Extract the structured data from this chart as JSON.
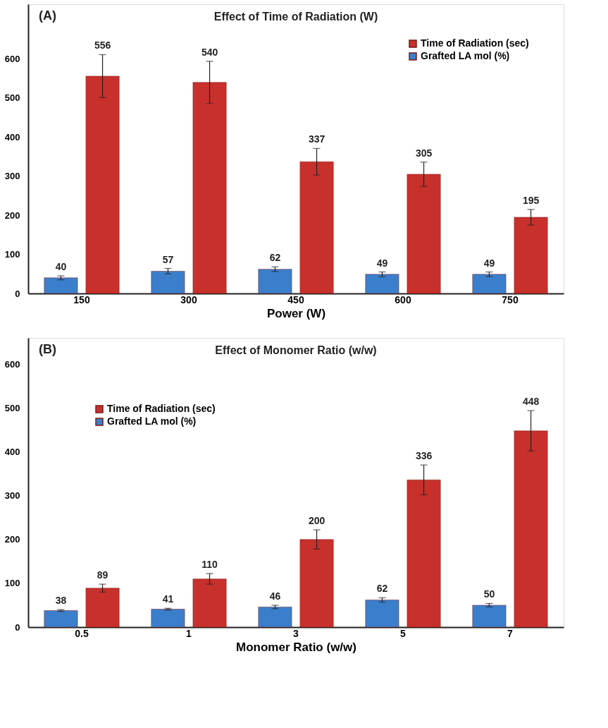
{
  "chart_data": [
    {
      "type": "bar",
      "title": "Effect of Time of Radiation (W)",
      "xlabel": "Power (W)",
      "annotations": [
        "(A)"
      ],
      "categories": [
        "150",
        "300",
        "450",
        "600",
        "750"
      ],
      "ylim": [
        0,
        740
      ],
      "yticks": [
        0,
        100,
        200,
        300,
        400,
        500,
        600
      ],
      "grid": false,
      "legend": "top right",
      "data_labels": true,
      "series": [
        {
          "name": "Grafted LA mol (%)",
          "color": "#3b7fcc",
          "values": [
            40,
            57,
            62,
            49,
            49
          ],
          "errors": [
            5,
            7,
            6,
            6,
            6
          ]
        },
        {
          "name": "Time of Radiation (sec)",
          "color": "#c8302c",
          "values": [
            556,
            540,
            337,
            305,
            195
          ],
          "errors": [
            55,
            54,
            34,
            31,
            20
          ]
        }
      ]
    },
    {
      "type": "bar",
      "title": "Effect of Monomer Ratio (w/w)",
      "xlabel": "Monomer Ratio (w/w)",
      "annotations": [
        "(B)"
      ],
      "categories": [
        "0.5",
        "1",
        "3",
        "5",
        "7"
      ],
      "ylim": [
        0,
        660
      ],
      "yticks": [
        0,
        100,
        200,
        300,
        400,
        500,
        600
      ],
      "grid": false,
      "legend": "top left",
      "data_labels": true,
      "series": [
        {
          "name": "Grafted LA mol (%)",
          "color": "#3b7fcc",
          "values": [
            38,
            41,
            46,
            62,
            50
          ],
          "errors": [
            2,
            2,
            4,
            5,
            4
          ]
        },
        {
          "name": "Time of Radiation (sec)",
          "color": "#c8302c",
          "values": [
            89,
            110,
            200,
            336,
            448
          ],
          "errors": [
            9,
            12,
            22,
            34,
            46
          ]
        }
      ]
    }
  ]
}
